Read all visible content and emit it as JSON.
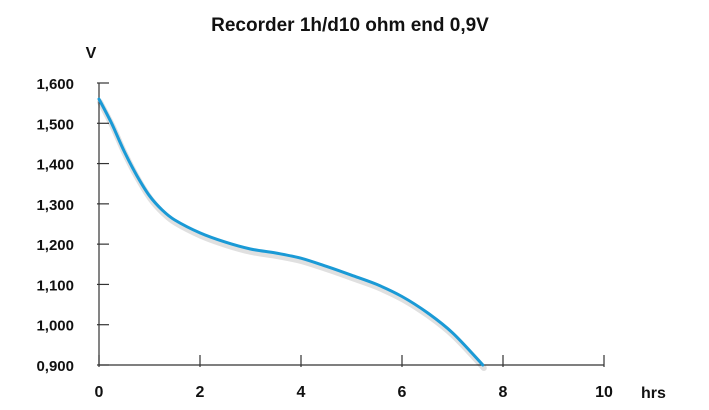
{
  "chart_data": {
    "type": "line",
    "title": "Recorder 1h/d10 ohm end 0,9V",
    "ylabel": "V",
    "xlabel": "hrs",
    "xlim": [
      0,
      10
    ],
    "ylim": [
      0.9,
      1.6
    ],
    "xticks": [
      0,
      2,
      4,
      6,
      8,
      10
    ],
    "xtick_labels": [
      "0",
      "2",
      "4",
      "6",
      "8",
      "10"
    ],
    "yticks": [
      0.9,
      1.0,
      1.1,
      1.2,
      1.3,
      1.4,
      1.5,
      1.6
    ],
    "ytick_labels": [
      "0,900",
      "1,000",
      "1,100",
      "1,200",
      "1,300",
      "1,400",
      "1,500",
      "1,600"
    ],
    "grid": false,
    "line_color": "#1a9ad6",
    "series": [
      {
        "x": [
          0.0,
          0.25,
          0.5,
          0.75,
          1.0,
          1.25,
          1.5,
          2.0,
          2.5,
          3.0,
          3.5,
          4.0,
          4.5,
          5.0,
          5.5,
          6.0,
          6.5,
          7.0,
          7.6
        ],
        "y": [
          1.56,
          1.5,
          1.43,
          1.37,
          1.32,
          1.285,
          1.26,
          1.228,
          1.205,
          1.188,
          1.178,
          1.165,
          1.145,
          1.123,
          1.1,
          1.07,
          1.03,
          0.98,
          0.9
        ]
      }
    ]
  }
}
